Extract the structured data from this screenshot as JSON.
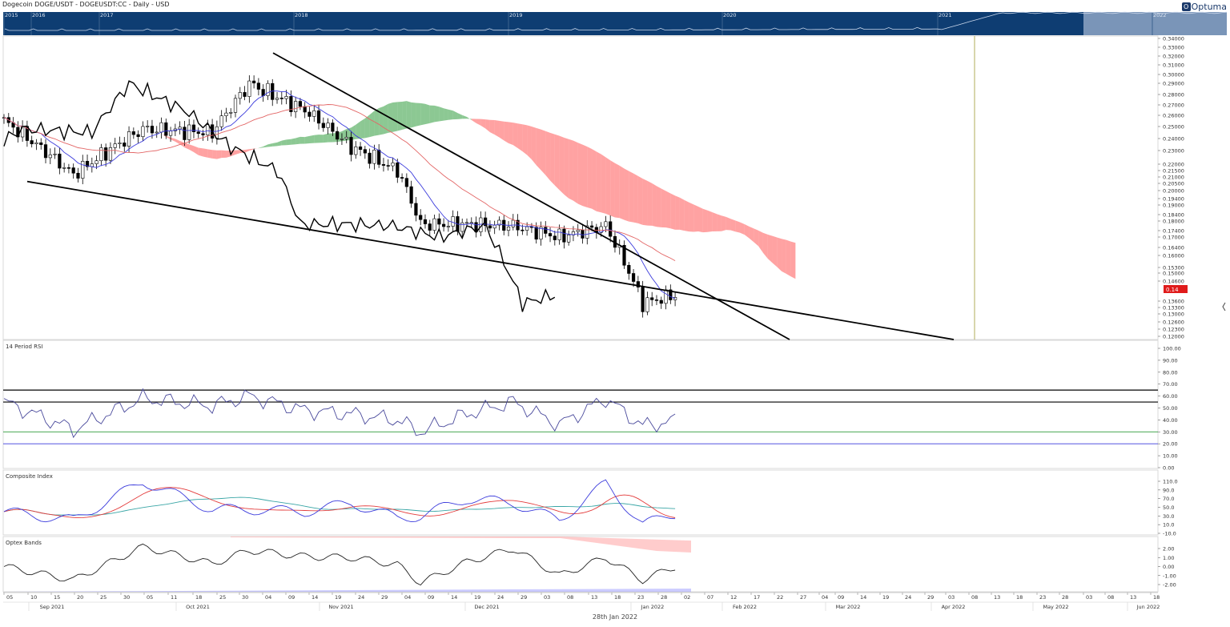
{
  "header": {
    "title": "Dogecoin DOGE/USDT - DOGEUSDT:CC - Daily - USD",
    "brand": "Optuma"
  },
  "overview": {
    "years": [
      "2015",
      "2016",
      "2017",
      "2018",
      "2019",
      "2020",
      "2021",
      "2022"
    ]
  },
  "price_panel": {
    "y_ticks": [
      "0.34000",
      "0.33000",
      "0.32000",
      "0.31000",
      "0.30000",
      "0.29000",
      "0.28000",
      "0.27000",
      "0.26000",
      "0.25000",
      "0.24000",
      "0.23000",
      "0.22000",
      "0.21500",
      "0.21000",
      "0.20500",
      "0.20000",
      "0.19400",
      "0.19000",
      "0.18400",
      "0.18000",
      "0.17400",
      "0.17000",
      "0.16400",
      "0.16000",
      "0.15300",
      "0.15000",
      "0.14600",
      "0.13600",
      "0.13300",
      "0.13000",
      "0.12600",
      "0.12300",
      "0.12000"
    ],
    "last_price_label": "0.14"
  },
  "rsi_panel": {
    "label": "14 Period RSI",
    "y_ticks": [
      "100.00",
      "90.00",
      "80.00",
      "70.00",
      "60.00",
      "50.00",
      "40.00",
      "30.00",
      "20.00",
      "10.00",
      "0.00"
    ]
  },
  "composite_panel": {
    "label": "Composite Index",
    "y_ticks": [
      "110.0",
      "90.0",
      "70.0",
      "50.0",
      "30.0",
      "10.0",
      "-10.0"
    ]
  },
  "optex_panel": {
    "label": "Optex Bands",
    "y_ticks": [
      "2.00",
      "1.00",
      "0.00",
      "-1.00",
      "-2.00"
    ]
  },
  "x_axis": {
    "days": [
      "05",
      "10",
      "15",
      "20",
      "25",
      "30",
      "05",
      "11",
      "18",
      "25",
      "30",
      "04",
      "09",
      "14",
      "19",
      "24",
      "29",
      "04",
      "09",
      "14",
      "19",
      "24",
      "29",
      "03",
      "08",
      "13",
      "18",
      "23",
      "28",
      "02",
      "07",
      "12",
      "17",
      "22",
      "27",
      "04",
      "09",
      "14",
      "19",
      "24",
      "29",
      "03",
      "08",
      "13",
      "18",
      "23",
      "28",
      "03",
      "08",
      "13",
      "18",
      "23",
      "28",
      "02",
      "07",
      "12"
    ],
    "months": [
      "Sep 2021",
      "Oct 2021",
      "Nov 2021",
      "Dec 2021",
      "Jan 2022",
      "Feb 2022",
      "Mar 2022",
      "Apr 2022",
      "May 2022",
      "Jun 2022"
    ]
  },
  "footer": {
    "date": "28th Jan 2022"
  },
  "colors": {
    "background": "#ffffff",
    "overview_bg": "#0e3d72",
    "kumo_bull": "#2e9a3a",
    "kumo_bear": "#ff5555",
    "kijun": "#e36666",
    "tenkan": "#3b3bdc",
    "chikou": "#000000",
    "trendline": "#000000",
    "rsi": "#4a4a9c",
    "composite_fast": "#3b3bdc",
    "composite_slow": "#e33b3b",
    "composite_avg": "#3aa6a6",
    "optex": "#222222",
    "price_tag": "#e01b1b"
  },
  "chart_data": {
    "type": "candlestick",
    "title": "Dogecoin DOGE/USDT - DOGEUSDT:CC - Daily - USD",
    "x": [
      "2021-09-05",
      "2021-09-20",
      "2021-10-05",
      "2021-10-20",
      "2021-10-28",
      "2021-11-09",
      "2021-11-19",
      "2021-11-29",
      "2021-12-04",
      "2021-12-14",
      "2021-12-24",
      "2022-01-03",
      "2022-01-13",
      "2022-01-21",
      "2022-01-28"
    ],
    "close": [
      0.255,
      0.212,
      0.248,
      0.245,
      0.29,
      0.265,
      0.233,
      0.215,
      0.178,
      0.178,
      0.177,
      0.17,
      0.177,
      0.135,
      0.139
    ],
    "ylim": [
      0.118,
      0.342
    ],
    "indicators": {
      "rsi_14": [
        55,
        32,
        58,
        52,
        60,
        48,
        45,
        40,
        30,
        45,
        55,
        36,
        58,
        35,
        39
      ],
      "composite_index": [
        40,
        20,
        110,
        45,
        45,
        40,
        60,
        25,
        30,
        70,
        60,
        20,
        105,
        10,
        35
      ],
      "optex_bands": [
        0.0,
        -1.5,
        2.2,
        0.3,
        1.8,
        1.1,
        1.0,
        0.2,
        -1.8,
        0.5,
        2.0,
        -1.0,
        1.0,
        -1.5,
        0.0
      ]
    }
  }
}
